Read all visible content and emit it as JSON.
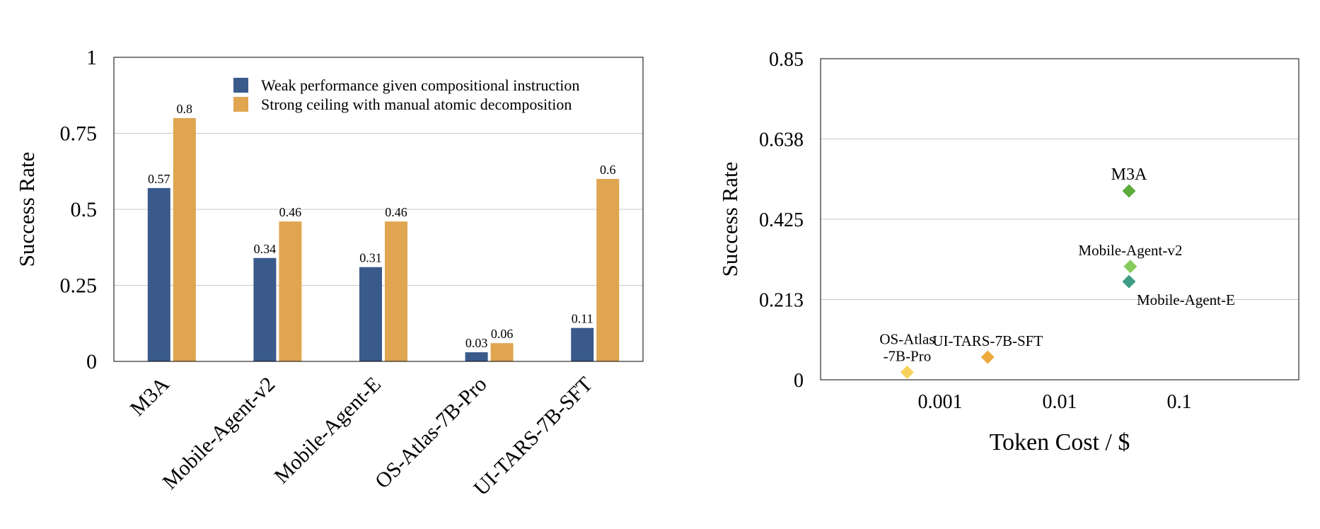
{
  "chart_data": [
    {
      "type": "bar",
      "title": "",
      "xlabel": "",
      "ylabel": "Success Rate",
      "ylim": [
        0,
        1
      ],
      "yticks": [
        0,
        0.25,
        0.5,
        0.75,
        1
      ],
      "ytick_labels": [
        "0",
        "0.25",
        "0.5",
        "0.75",
        "1"
      ],
      "grid": true,
      "legend_position": "top-right",
      "categories": [
        "M3A",
        "Mobile-Agent-v2",
        "Mobile-Agent-E",
        "OS-Atlas-7B-Pro",
        "UI-TARS-7B-SFT"
      ],
      "series": [
        {
          "name": "Weak performance given compositional instruction",
          "color": "#3a5a8c",
          "values": [
            0.57,
            0.34,
            0.31,
            0.03,
            0.11
          ],
          "labels": [
            "0.57",
            "0.34",
            "0.31",
            "0.03",
            "0.11"
          ]
        },
        {
          "name": "Strong ceiling with manual atomic decomposition",
          "color": "#dfa54f",
          "values": [
            0.8,
            0.46,
            0.46,
            0.06,
            0.6
          ],
          "labels": [
            "0.8",
            "0.46",
            "0.46",
            "0.06",
            "0.6"
          ]
        }
      ]
    },
    {
      "type": "scatter",
      "title": "",
      "xlabel": "Token Cost / $",
      "ylabel": "Success Rate",
      "xscale": "log",
      "xlim": [
        0.0001,
        1
      ],
      "xticks": [
        0.001,
        0.01,
        0.1
      ],
      "xtick_labels": [
        "0.001",
        "0.01",
        "0.1"
      ],
      "ylim": [
        0,
        0.85
      ],
      "yticks": [
        0,
        0.2125,
        0.425,
        0.6375,
        0.85
      ],
      "ytick_labels": [
        "0",
        "0.213",
        "0.425",
        "0.638",
        "0.85"
      ],
      "grid": true,
      "marker": "diamond",
      "points": [
        {
          "label": "M3A",
          "x": 0.038,
          "y": 0.5,
          "color": "#5cab3c",
          "label_side": "above"
        },
        {
          "label": "Mobile-Agent-v2",
          "x": 0.039,
          "y": 0.3,
          "color": "#86cc5c",
          "label_side": "above"
        },
        {
          "label": "Mobile-Agent-E",
          "x": 0.038,
          "y": 0.26,
          "color": "#3f9d86",
          "label_side": "below-right"
        },
        {
          "label": "OS-Atlas\n-7B-Pro",
          "x": 0.00053,
          "y": 0.02,
          "color": "#f7d35e",
          "label_side": "above"
        },
        {
          "label": "UI-TARS-7B-SFT",
          "x": 0.0025,
          "y": 0.06,
          "color": "#eeaa3f",
          "label_side": "above"
        }
      ]
    }
  ]
}
